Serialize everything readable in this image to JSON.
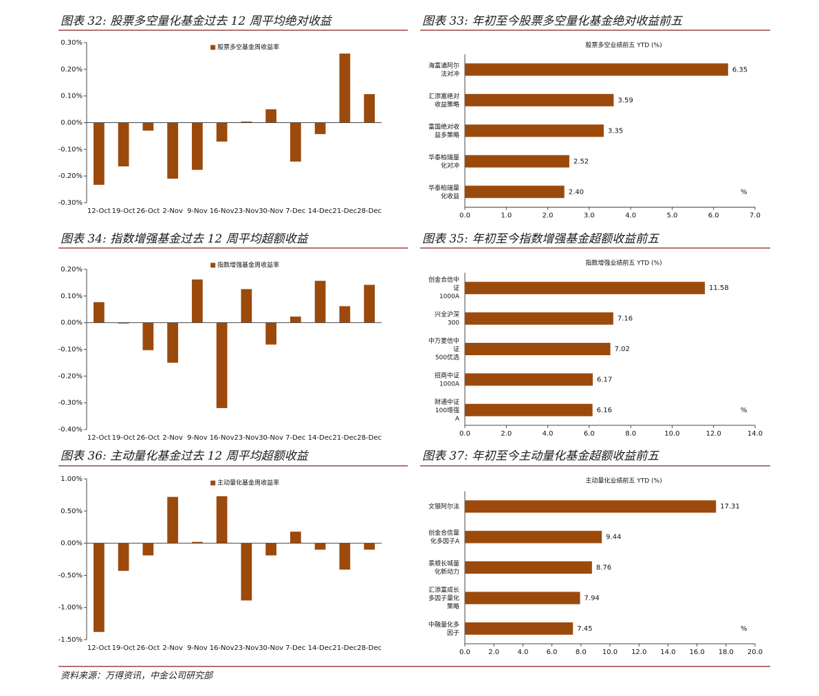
{
  "chart_data": [
    {
      "type": "bar",
      "title": "图表 32: 股票多空量化基金过去 12 周平均绝对收益",
      "categories": [
        "12-Oct",
        "19-Oct",
        "26-Oct",
        "2-Nov",
        "9-Nov",
        "16-Nov",
        "23-Nov",
        "30-Nov",
        "7-Dec",
        "14-Dec",
        "21-Dec",
        "28-Dec"
      ],
      "series": [
        {
          "name": "股票多空基金周收益率",
          "color": "#9c4a0c",
          "values": [
            -0.233,
            -0.164,
            -0.03,
            -0.21,
            -0.177,
            -0.071,
            0.004,
            0.05,
            -0.146,
            -0.043,
            0.259,
            0.107
          ]
        }
      ],
      "ylim": [
        -0.3,
        0.3
      ],
      "yticks": [
        {
          "value": -0.3,
          "label": "-0.30%"
        },
        {
          "value": -0.2,
          "label": "-0.20%"
        },
        {
          "value": -0.1,
          "label": "-0.10%"
        },
        {
          "value": 0,
          "label": "0.00%"
        },
        {
          "value": 0.1,
          "label": "0.10%"
        },
        {
          "value": 0.2,
          "label": "0.20%"
        },
        {
          "value": 0.3,
          "label": "0.30%"
        }
      ]
    },
    {
      "type": "barh",
      "title": "图表 33: 年初至今股票多空量化基金绝对收益前五",
      "subtitle": "股票多空业绩前五 YTD (%)",
      "categories": [
        "海富通阿尔法对冲",
        "汇添富绝对收益策略",
        "富国绝对收益多策略",
        "华泰柏瑞量化对冲",
        "华泰柏瑞量化收益"
      ],
      "values": [
        6.35,
        3.59,
        3.35,
        2.52,
        2.4
      ],
      "value_labels": [
        "6.35",
        "3.59",
        "3.35",
        "2.52",
        "2.40"
      ],
      "color": "#9c4a0c",
      "xlim": [
        0,
        7
      ],
      "xticks": [
        {
          "value": 0,
          "label": "0.0"
        },
        {
          "value": 1,
          "label": "1.0"
        },
        {
          "value": 2,
          "label": "2.0"
        },
        {
          "value": 3,
          "label": "3.0"
        },
        {
          "value": 4,
          "label": "4.0"
        },
        {
          "value": 5,
          "label": "5.0"
        },
        {
          "value": 6,
          "label": "6.0"
        },
        {
          "value": 7,
          "label": "7.0"
        }
      ],
      "annotation": "%"
    },
    {
      "type": "bar",
      "title": "图表 34: 指数增强基金过去 12 周平均超额收益",
      "categories": [
        "12-Oct",
        "19-Oct",
        "26-Oct",
        "2-Nov",
        "9-Nov",
        "16-Nov",
        "23-Nov",
        "30-Nov",
        "7-Dec",
        "14-Dec",
        "21-Dec",
        "28-Dec"
      ],
      "series": [
        {
          "name": "指数增强基金周收益率",
          "color": "#9c4a0c",
          "values": [
            0.077,
            -0.003,
            -0.103,
            -0.15,
            0.162,
            -0.32,
            0.126,
            -0.082,
            0.023,
            0.157,
            0.062,
            0.142
          ]
        }
      ],
      "ylim": [
        -0.4,
        0.2
      ],
      "yticks": [
        {
          "value": -0.4,
          "label": "-0.40%"
        },
        {
          "value": -0.3,
          "label": "-0.30%"
        },
        {
          "value": -0.2,
          "label": "-0.20%"
        },
        {
          "value": -0.1,
          "label": "-0.10%"
        },
        {
          "value": 0,
          "label": "0.00%"
        },
        {
          "value": 0.1,
          "label": "0.10%"
        },
        {
          "value": 0.2,
          "label": "0.20%"
        }
      ]
    },
    {
      "type": "barh",
      "title": "图表 35: 年初至今指数增强基金超额收益前五",
      "subtitle": "指数增强业绩前五 YTD (%)",
      "categories": [
        "创金合信中证1000A",
        "兴全沪深300",
        "中万菱信中证500优选",
        "招商中证1000A",
        "财通中证100增强A"
      ],
      "values": [
        11.58,
        7.16,
        7.02,
        6.17,
        6.16
      ],
      "color": "#9c4a0c",
      "xlim": [
        0,
        14
      ],
      "xticks": [
        {
          "value": 0,
          "label": "0.0"
        },
        {
          "value": 2,
          "label": "2.0"
        },
        {
          "value": 4,
          "label": "4.0"
        },
        {
          "value": 6,
          "label": "6.0"
        },
        {
          "value": 8,
          "label": "8.0"
        },
        {
          "value": 10,
          "label": "10.0"
        },
        {
          "value": 12,
          "label": "12.0"
        },
        {
          "value": 14,
          "label": "14.0"
        }
      ],
      "annotation": "%"
    },
    {
      "type": "bar",
      "title": "图表 36: 主动量化基金过去 12 周平均超额收益",
      "categories": [
        "12-Oct",
        "19-Oct",
        "26-Oct",
        "2-Nov",
        "9-Nov",
        "16-Nov",
        "23-Nov",
        "30-Nov",
        "7-Dec",
        "14-Dec",
        "21-Dec",
        "28-Dec"
      ],
      "series": [
        {
          "name": "主动量化基金周收益率",
          "color": "#9c4a0c",
          "values": [
            -1.38,
            -0.43,
            -0.19,
            0.72,
            0.02,
            0.73,
            -0.89,
            -0.19,
            0.18,
            -0.1,
            -0.41,
            -0.1
          ]
        }
      ],
      "ylim": [
        -1.5,
        1.0
      ],
      "yticks": [
        {
          "value": -1.5,
          "label": "-1.50%"
        },
        {
          "value": -1,
          "label": "-1.00%"
        },
        {
          "value": -0.5,
          "label": "-0.50%"
        },
        {
          "value": 0,
          "label": "0.00%"
        },
        {
          "value": 0.5,
          "label": "0.50%"
        },
        {
          "value": 1,
          "label": "1.00%"
        }
      ]
    },
    {
      "type": "barh",
      "title": "图表 37: 年初至今主动量化基金超额收益前五",
      "subtitle": "主动量化业绩前五 YTD (%)",
      "categories": [
        "文银阿尔法",
        "创金合信量化多因子A",
        "景顺长城量化新动力",
        "汇添富成长多因子量化策略",
        "中融量化多因子"
      ],
      "values": [
        17.31,
        9.44,
        8.76,
        7.94,
        7.45
      ],
      "color": "#9c4a0c",
      "xlim": [
        0,
        20
      ],
      "xticks": [
        {
          "value": 0,
          "label": "0.0"
        },
        {
          "value": 2,
          "label": "2.0"
        },
        {
          "value": 4,
          "label": "4.0"
        },
        {
          "value": 6,
          "label": "6.0"
        },
        {
          "value": 8,
          "label": "8.0"
        },
        {
          "value": 10,
          "label": "10.0"
        },
        {
          "value": 12,
          "label": "12.0"
        },
        {
          "value": 14,
          "label": "14.0"
        },
        {
          "value": 16,
          "label": "16.0"
        },
        {
          "value": 18,
          "label": "18.0"
        },
        {
          "value": 20,
          "label": "20.0"
        }
      ],
      "annotation": "%"
    }
  ],
  "source": "资料来源：万得资讯，中金公司研究部"
}
